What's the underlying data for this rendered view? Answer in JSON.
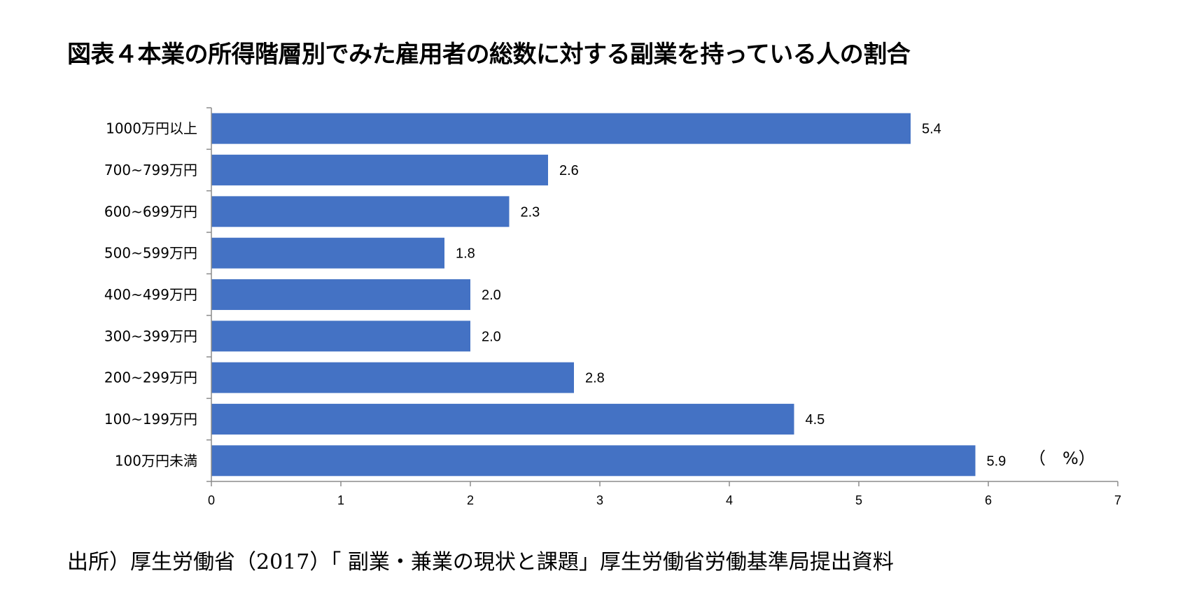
{
  "title": "図表４本業の所得階層別でみた雇用者の総数に対する副業を持っている人の割合",
  "unit": "（　%）",
  "source": "出所）厚生労働省（2017）「 副業・兼業の現状と課題」厚生労働省労働基準局提出資料",
  "colors": {
    "bar": "#4472C4",
    "axis": "#8c8c8c"
  },
  "chart_data": {
    "type": "bar",
    "orientation": "horizontal",
    "categories": [
      "1000万円以上",
      "700~799万円",
      "600~699万円",
      "500~599万円",
      "400~499万円",
      "300~399万円",
      "200~299万円",
      "100~199万円",
      "100万円未満"
    ],
    "values": [
      5.4,
      2.6,
      2.3,
      1.8,
      2.0,
      2.0,
      2.8,
      4.5,
      5.9
    ],
    "value_labels": [
      "5.4",
      "2.6",
      "2.3",
      "1.8",
      "2.0",
      "2.0",
      "2.8",
      "4.5",
      "5.9"
    ],
    "xlim": [
      0,
      7
    ],
    "xticks": [
      0,
      1,
      2,
      3,
      4,
      5,
      6,
      7
    ],
    "grid": false,
    "legend": "none"
  }
}
